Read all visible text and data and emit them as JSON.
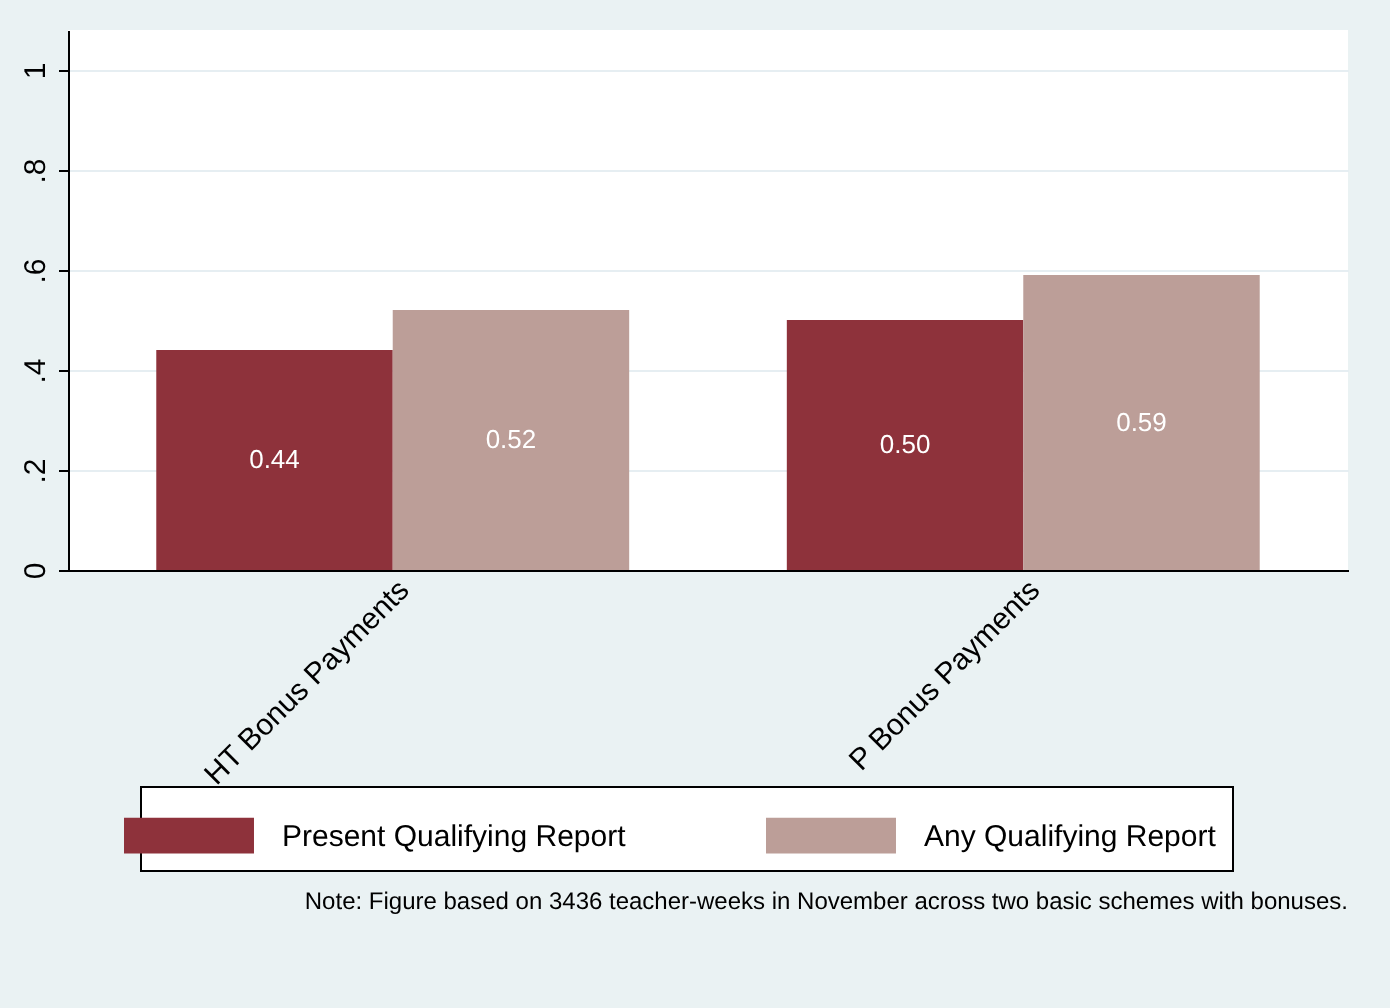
{
  "chart_data": {
    "type": "bar",
    "categories": [
      "HT Bonus Payments",
      "P Bonus Payments"
    ],
    "series": [
      {
        "name": "Present Qualifying Report",
        "color": "#8e323b",
        "values": [
          0.44,
          0.5
        ],
        "value_labels": [
          "0.44",
          "0.50"
        ]
      },
      {
        "name": "Any Qualifying Report",
        "color": "#bc9e98",
        "values": [
          0.52,
          0.59
        ],
        "value_labels": [
          "0.52",
          "0.59"
        ]
      }
    ],
    "ylim": [
      0,
      1.08
    ],
    "yticks": [
      0,
      {
        "value": 0.2,
        "label": ".2"
      },
      {
        "value": 0.4,
        "label": ".4"
      },
      {
        "value": 0.6,
        "label": ".6"
      },
      {
        "value": 0.8,
        "label": ".8"
      },
      1
    ],
    "grid": "y",
    "legend": "bottom",
    "annotations": [
      "Note: Figure based on 3436 teacher-weeks in November across two basic schemes with bonuses."
    ]
  }
}
